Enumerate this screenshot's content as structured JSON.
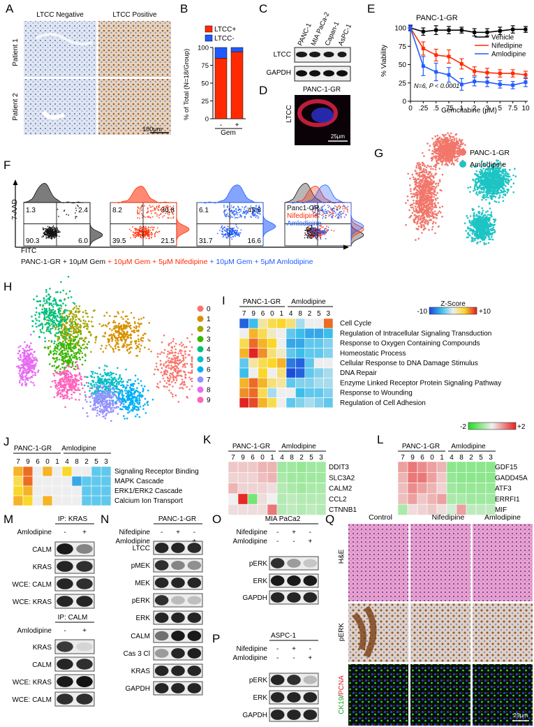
{
  "panel_letters": [
    "A",
    "B",
    "C",
    "D",
    "E",
    "F",
    "G",
    "H",
    "I",
    "J",
    "K",
    "L",
    "M",
    "N",
    "O",
    "P",
    "Q"
  ],
  "panelA": {
    "col_titles": [
      "LTCC Negative",
      "LTCC Positive"
    ],
    "row_labels": [
      "Patient 1",
      "Patient 2"
    ],
    "scale": "100μm"
  },
  "panelB": {
    "legend": [
      "LTCC+",
      "LTCC-"
    ],
    "ylabel": "% of Total (N=18/Group)",
    "xticks": [
      "-",
      "+"
    ],
    "xlabel": "Gem",
    "yticks": [
      "0",
      "25",
      "50",
      "75",
      "100"
    ],
    "colors": {
      "pos": "#ff2a00",
      "neg": "#1f5bff"
    }
  },
  "panelC": {
    "lanes": [
      "PANC-1",
      "MIA PaCa-2",
      "Capan-1",
      "AsPC-1"
    ],
    "rows": [
      "LTCC",
      "GAPDH"
    ]
  },
  "panelD": {
    "title": "PANC-1-GR",
    "ylabel": "LTCC",
    "scale": "25μm"
  },
  "chart_data": {
    "type": "line",
    "title": "PANC-1-GR",
    "xlabel": "Gemcitabine (μM)",
    "ylabel": "% Viability",
    "categories": [
      "0",
      ".25",
      ".5",
      ".75",
      "1",
      "2",
      "3",
      "5",
      "7.5",
      "10"
    ],
    "ylim": [
      0,
      100
    ],
    "yticks": [
      "0",
      "25",
      "50",
      "75",
      "100"
    ],
    "annotation": "N=6, P < 0.0001",
    "series": [
      {
        "name": "Vehicle",
        "color": "#000000",
        "values": [
          100,
          95,
          97,
          97,
          97,
          94,
          94,
          96,
          98,
          98
        ],
        "err": [
          3,
          5,
          6,
          5,
          4,
          5,
          5,
          5,
          5,
          4
        ]
      },
      {
        "name": "Nifedipine",
        "color": "#ff2a00",
        "values": [
          100,
          72,
          63,
          61,
          51,
          41,
          39,
          38,
          38,
          36
        ],
        "err": [
          4,
          9,
          8,
          9,
          7,
          6,
          6,
          5,
          5,
          5
        ]
      },
      {
        "name": "Amlodipine",
        "color": "#1f5bff",
        "values": [
          100,
          48,
          40,
          36,
          23,
          27,
          26,
          23,
          22,
          26
        ],
        "err": [
          4,
          13,
          12,
          10,
          8,
          6,
          6,
          5,
          5,
          6
        ]
      }
    ]
  },
  "panelF": {
    "xlabel": "FITC",
    "ylabel": "7-AAD",
    "quadrants": [
      [
        "1.3",
        "2.4",
        "90.3",
        "6.0"
      ],
      [
        "8.2",
        "30.8",
        "39.5",
        "21.5"
      ],
      [
        "6.1",
        "45.6",
        "31.7",
        "16.6"
      ]
    ],
    "overlay_legend": [
      "Panc1-GR",
      "Nifedipine",
      "Amlodipine"
    ],
    "caption": [
      "PANC-1-GR + 10μM Gem",
      " + 10μM Gem + 5μM Nifedipine",
      " + 10μM Gem + 5μM Amlodipine"
    ],
    "colors": [
      "#111111",
      "#ff2a00",
      "#1f5bff"
    ]
  },
  "panelG": {
    "legend": [
      "PANC-1-GR",
      "Amlodipine"
    ],
    "colors": [
      "#f2766b",
      "#1ec4c4"
    ]
  },
  "panelH": {
    "legend": [
      "0",
      "1",
      "2",
      "3",
      "4",
      "5",
      "6",
      "7",
      "8",
      "9"
    ],
    "colors": [
      "#f8766d",
      "#d89000",
      "#a3a500",
      "#39b600",
      "#00bf7d",
      "#00bfc4",
      "#00b0f6",
      "#9590ff",
      "#e76bf3",
      "#ff62bc"
    ]
  },
  "panelI": {
    "groups": [
      "PANC-1-GR",
      "Amlodipine"
    ],
    "cols": [
      "7",
      "9",
      "6",
      "0",
      "1",
      "4",
      "8",
      "2",
      "5",
      "3"
    ],
    "scale_title": "Z-Score",
    "scale_min": "-10",
    "scale_max": "+10",
    "rows": [
      "Cell Cycle",
      "Regulation of Intracellular Signaling Transduction",
      "Response to Oxygen Containing Compounds",
      "Homeostatic Process",
      "Cellular Response to DNA Damage Stimulus",
      "DNA Repair",
      "Enzyme Linked Receptor Protein Signaling Pathway",
      "Response to Wounding",
      "Regulation of Cell Adhesion"
    ],
    "values": [
      [
        -9,
        -5,
        2,
        4,
        5,
        3,
        -2,
        0,
        0,
        8
      ],
      [
        0,
        6,
        4,
        1,
        0,
        -4,
        -5,
        -6,
        -6,
        -5
      ],
      [
        4,
        8,
        6,
        5,
        0,
        -6,
        -6,
        -4,
        -4,
        -3
      ],
      [
        6,
        10,
        7,
        3,
        1,
        -4,
        -5,
        -4,
        -4,
        -3
      ],
      [
        -4,
        2,
        4,
        5,
        6,
        -8,
        -9,
        -4,
        0,
        0
      ],
      [
        -5,
        0,
        5,
        0,
        3,
        -10,
        -9,
        -4,
        -3,
        -2
      ],
      [
        6,
        8,
        6,
        3,
        2,
        -4,
        -3,
        -3,
        -2,
        -2
      ],
      [
        7,
        8,
        4,
        -2,
        0,
        0,
        -5,
        -4,
        -4,
        -3
      ],
      [
        10,
        9,
        6,
        4,
        0,
        -4,
        -3,
        -2,
        -3,
        -4
      ]
    ]
  },
  "panelJ": {
    "groups": [
      "PANC-1-GR",
      "Amlodipine"
    ],
    "cols": [
      "7",
      "9",
      "6",
      "0",
      "1",
      "4",
      "8",
      "2",
      "5",
      "3"
    ],
    "rows": [
      "Signaling Receptor Binding",
      "MAPK Cascade",
      "ERK1/ERK2 Cascade",
      "Calcium Ion Transport"
    ],
    "values": [
      [
        6,
        8,
        0,
        6,
        0,
        5,
        0,
        0,
        -4,
        -4
      ],
      [
        4,
        8,
        0,
        0,
        0,
        0,
        -6,
        -4,
        -4,
        -4
      ],
      [
        5,
        6,
        0,
        0,
        0,
        0,
        0,
        -4,
        -4,
        -4
      ],
      [
        6,
        5,
        0,
        6,
        0,
        0,
        0,
        -4,
        -4,
        -4
      ]
    ]
  },
  "diverging_scale": {
    "min": "-2",
    "max": "+2"
  },
  "panelK": {
    "groups": [
      "PANC-1-GR",
      "Amlodipine"
    ],
    "cols": [
      "7",
      "9",
      "6",
      "0",
      "1",
      "4",
      "8",
      "2",
      "5",
      "3"
    ],
    "rows": [
      "DDIT3",
      "SLC3A2",
      "CALM2",
      "CCL2",
      "CTNNB1"
    ],
    "values": [
      [
        0.4,
        0.4,
        0.4,
        0.6,
        0.6,
        -0.8,
        -0.8,
        -0.9,
        -0.8,
        -0.8
      ],
      [
        0.3,
        0.3,
        0.3,
        0.5,
        0.6,
        -0.7,
        -0.8,
        -0.8,
        -0.8,
        -0.8
      ],
      [
        0.6,
        0.3,
        0.3,
        0.3,
        0.2,
        -0.6,
        -0.7,
        -0.8,
        -0.7,
        -0.7
      ],
      [
        0,
        2,
        -1.2,
        0.2,
        0,
        -0.6,
        -0.5,
        -0.6,
        -0.6,
        -0.6
      ],
      [
        0.2,
        0.2,
        0.2,
        0.2,
        1.2,
        -0.6,
        -0.5,
        -0.6,
        -0.5,
        -0.6
      ]
    ]
  },
  "panelL": {
    "groups": [
      "PANC-1-GR",
      "Amlodipine"
    ],
    "cols": [
      "7",
      "9",
      "6",
      "0",
      "1",
      "4",
      "8",
      "2",
      "5",
      "3"
    ],
    "rows": [
      "GDF15",
      "GADD45A",
      "ATF3",
      "ERRFI1",
      "MIF"
    ],
    "values": [
      [
        0.8,
        1.2,
        1.0,
        0.8,
        0.6,
        -1.0,
        -1.0,
        -1.0,
        -1.0,
        -1.0
      ],
      [
        0.6,
        1.2,
        1.2,
        0.8,
        0.4,
        -0.9,
        -1.0,
        -1.0,
        -1.0,
        -1.0
      ],
      [
        0.5,
        1.0,
        0.8,
        0.6,
        0.3,
        -0.8,
        -0.9,
        -0.9,
        -0.9,
        -0.9
      ],
      [
        0.5,
        0.8,
        0.4,
        0.6,
        0.8,
        -0.7,
        -0.7,
        -0.8,
        -0.8,
        -0.8
      ],
      [
        -0.7,
        0.2,
        0.3,
        0.4,
        0.2,
        -0.3,
        0.8,
        -0.5,
        -0.5,
        -0.5
      ]
    ]
  },
  "panelM": {
    "ip1": "IP: KRAS",
    "ip2": "IP: CALM",
    "treat": "Amlodipine",
    "signs": [
      "-",
      "+"
    ],
    "rows1": [
      "CALM",
      "KRAS",
      "WCE: CALM",
      "WCE: KRAS"
    ],
    "rows2": [
      "KRAS",
      "CALM",
      "WCE: KRAS",
      "WCE: CALM"
    ]
  },
  "panelN": {
    "title": "PANC-1-GR",
    "treat": [
      "Nifedipine",
      "Amlodipine"
    ],
    "signs": [
      [
        "-",
        "+",
        "-"
      ],
      [
        "-",
        "-",
        "+"
      ]
    ],
    "rows": [
      "LTCC",
      "pMEK",
      "MEK",
      "pERK",
      "ERK",
      "CALM",
      "Cas 3 Cl",
      "KRAS",
      "GAPDH"
    ]
  },
  "panelO": {
    "title": "MIA PaCa2",
    "treat": [
      "Nifedipine",
      "Amlodipine"
    ],
    "signs": [
      [
        "-",
        "+",
        "-"
      ],
      [
        "-",
        "-",
        "+"
      ]
    ],
    "rows": [
      "pERK",
      "ERK",
      "GAPDH"
    ]
  },
  "panelP": {
    "title": "ASPC-1",
    "treat": [
      "Nifedipine",
      "Amlodipine"
    ],
    "signs": [
      [
        "-",
        "+",
        "-"
      ],
      [
        "-",
        "-",
        "+"
      ]
    ],
    "rows": [
      "pERK",
      "ERK",
      "GAPDH"
    ]
  },
  "panelQ": {
    "cols": [
      "Control",
      "Nifedipine",
      "Amlodipine"
    ],
    "rows": [
      "H&E",
      "pERK"
    ],
    "row3_parts": [
      "CK19",
      "/",
      "PCNA"
    ],
    "scale": "25μm"
  }
}
